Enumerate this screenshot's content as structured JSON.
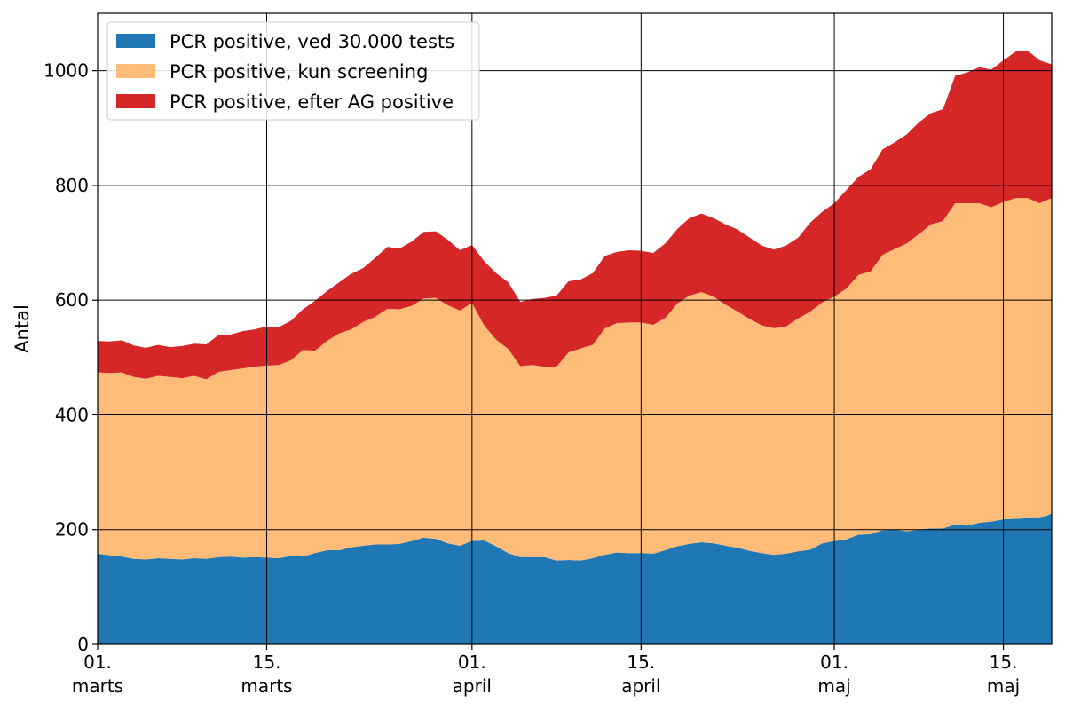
{
  "chart_data": {
    "type": "area",
    "stacked": true,
    "ylabel": "Antal",
    "xlabel": "",
    "ylim": [
      0,
      1100
    ],
    "yticks": [
      0,
      200,
      400,
      600,
      800,
      1000
    ],
    "xlim": [
      "2021-03-01",
      "2021-05-19"
    ],
    "xticks": [
      {
        "date": "2021-03-01",
        "label_day": "01.",
        "label_month": "marts"
      },
      {
        "date": "2021-03-15",
        "label_day": "15.",
        "label_month": "marts"
      },
      {
        "date": "2021-04-01",
        "label_day": "01.",
        "label_month": "april"
      },
      {
        "date": "2021-04-15",
        "label_day": "15.",
        "label_month": "april"
      },
      {
        "date": "2021-05-01",
        "label_day": "01.",
        "label_month": "maj"
      },
      {
        "date": "2021-05-15",
        "label_day": "15.",
        "label_month": "maj"
      }
    ],
    "grid": true,
    "legend_position": "top-left",
    "x_start": "2021-03-01",
    "x_step_days": 1,
    "series": [
      {
        "name": "PCR positive, ved 30.000 tests",
        "color": "#1f77b4",
        "values": [
          158,
          155,
          153,
          149,
          148,
          150,
          149,
          148,
          150,
          149,
          152,
          153,
          151,
          152,
          151,
          150,
          154,
          153,
          159,
          164,
          164,
          169,
          172,
          174,
          174,
          175,
          180,
          186,
          184,
          176,
          172,
          180,
          181,
          171,
          159,
          152,
          152,
          152,
          146,
          147,
          146,
          150,
          156,
          160,
          159,
          159,
          158,
          164,
          171,
          175,
          178,
          176,
          172,
          168,
          163,
          159,
          156,
          158,
          162,
          165,
          176,
          180,
          183,
          191,
          192,
          199,
          200,
          197,
          200,
          202,
          202,
          209,
          207,
          212,
          214,
          218,
          219,
          220,
          220,
          228
        ]
      },
      {
        "name": "PCR positive, kun screening",
        "color": "#ffbb78",
        "values": [
          316,
          318,
          321,
          317,
          315,
          318,
          317,
          316,
          318,
          313,
          323,
          325,
          330,
          332,
          335,
          337,
          341,
          360,
          353,
          365,
          378,
          380,
          390,
          397,
          411,
          409,
          410,
          417,
          420,
          415,
          410,
          415,
          375,
          360,
          356,
          333,
          335,
          332,
          338,
          362,
          370,
          372,
          395,
          400,
          402,
          402,
          399,
          405,
          423,
          433,
          436,
          430,
          420,
          412,
          404,
          397,
          395,
          396,
          406,
          415,
          420,
          426,
          437,
          453,
          458,
          480,
          489,
          502,
          515,
          530,
          536,
          560,
          562,
          557,
          548,
          553,
          559,
          558,
          549,
          550
        ]
      },
      {
        "name": "PCR positive, efter AG positive",
        "color": "#d62728",
        "values": [
          55,
          55,
          56,
          55,
          54,
          54,
          52,
          56,
          56,
          61,
          64,
          62,
          65,
          65,
          68,
          66,
          69,
          71,
          87,
          87,
          89,
          97,
          94,
          103,
          108,
          106,
          112,
          116,
          116,
          114,
          105,
          101,
          112,
          116,
          116,
          112,
          115,
          120,
          124,
          124,
          120,
          125,
          126,
          124,
          126,
          125,
          125,
          130,
          130,
          135,
          137,
          137,
          140,
          143,
          142,
          139,
          137,
          141,
          141,
          155,
          158,
          163,
          172,
          171,
          178,
          184,
          186,
          190,
          195,
          194,
          195,
          222,
          228,
          237,
          240,
          247,
          255,
          257,
          249,
          233
        ]
      }
    ]
  }
}
